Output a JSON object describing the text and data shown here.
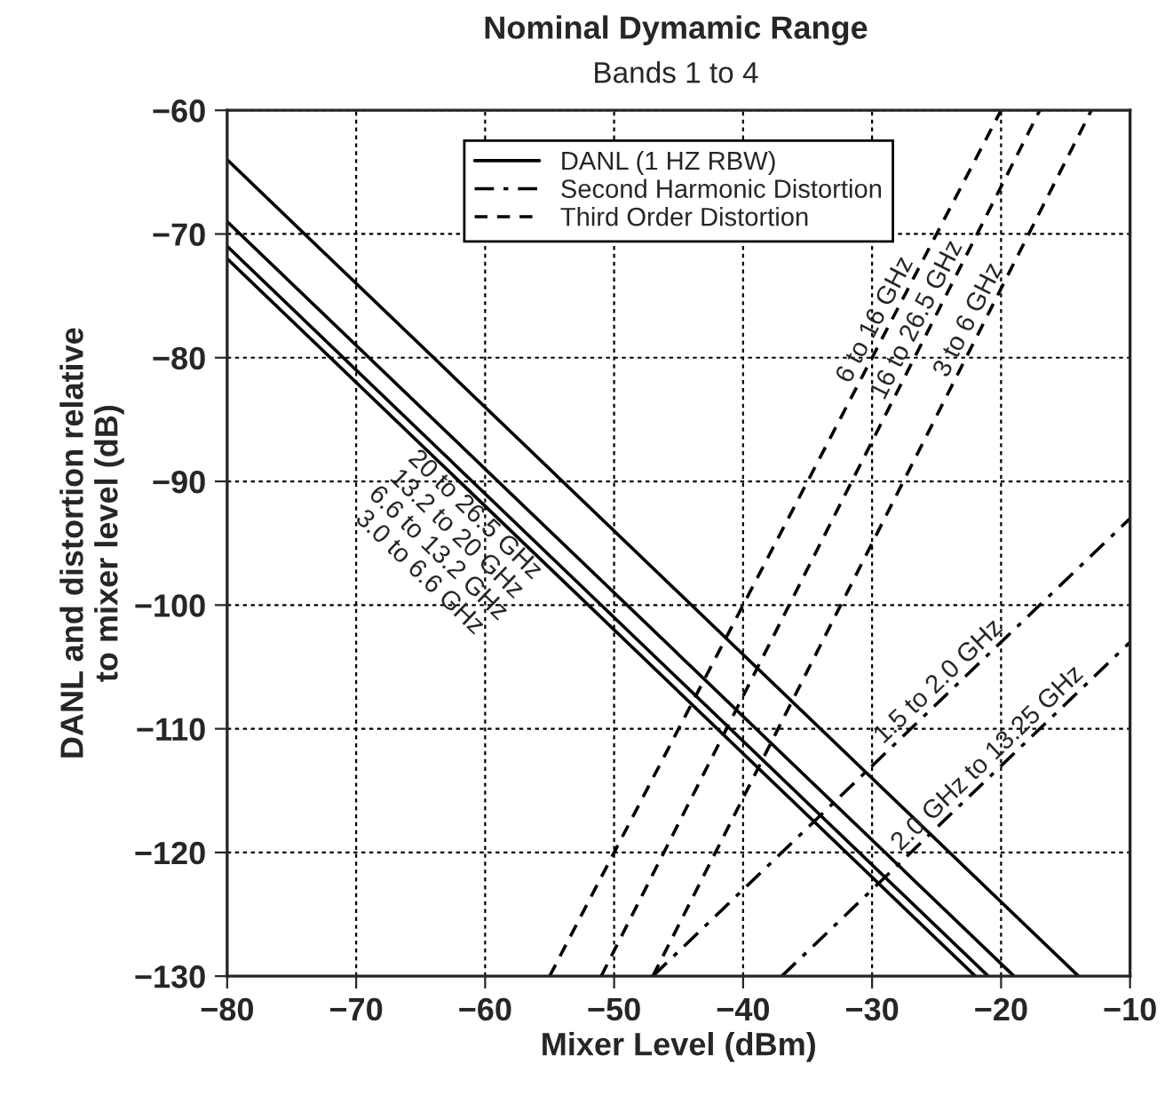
{
  "chart_data": {
    "type": "line",
    "title": "Nominal Dymamic Range",
    "subtitle": "Bands 1 to 4",
    "xlabel": "Mixer Level (dBm)",
    "ylabel": "DANL and distortion relative\nto mixer level (dB)",
    "series": [
      {
        "name": "DANL (1 HZ RBW)",
        "color": "#000000",
        "line_style": "solid",
        "x": [
          -80,
          -14
        ],
        "values": [
          -64,
          -130
        ]
      },
      {
        "color": "#000000",
        "line_style": "solid",
        "x": [
          -80,
          -19
        ],
        "values": [
          -69,
          -130
        ]
      },
      {
        "color": "#000000",
        "line_style": "solid",
        "x": [
          -80,
          -21
        ],
        "values": [
          -71,
          -130
        ]
      },
      {
        "color": "#000000",
        "line_style": "solid",
        "x": [
          -80,
          -22
        ],
        "values": [
          -72,
          -130
        ]
      },
      {
        "name": "Second Harmonic Distortion",
        "color": "#000000",
        "line_style": "dashdot",
        "x": [
          -47,
          -10
        ],
        "values": [
          -130,
          -93
        ]
      },
      {
        "color": "#000000",
        "line_style": "dashdot",
        "x": [
          -37,
          -10
        ],
        "values": [
          -130,
          -103
        ]
      },
      {
        "name": "Third Order Distortion",
        "color": "#000000",
        "line_style": "dashed",
        "x": [
          -55,
          -20
        ],
        "values": [
          -130,
          -60
        ]
      },
      {
        "color": "#000000",
        "line_style": "dashed",
        "x": [
          -51,
          -17
        ],
        "values": [
          -130,
          -60
        ]
      },
      {
        "color": "#000000",
        "line_style": "dashed",
        "x": [
          -47,
          -13
        ],
        "values": [
          -130,
          -60
        ]
      }
    ],
    "annotations": [
      "20 to 26.5 GHz",
      "13.2 to 20 GHz",
      "6.6 to 13.2 GHz",
      "3.0 to 6.6 GHz",
      "1.5 to 2.0 GHz",
      "2.0 GHz to 13.25 GHz",
      "6 to 16 GHz",
      "16 to 26.5 GHz",
      "3 to 6 GHz"
    ],
    "xlim": [
      -80,
      -10
    ],
    "ylim": [
      -130,
      -60
    ],
    "xticks": [
      {
        "value": -80,
        "label": "−80"
      },
      {
        "value": -70,
        "label": "−70"
      },
      {
        "value": -60,
        "label": "−60"
      },
      {
        "value": -50,
        "label": "−50"
      },
      {
        "value": -40,
        "label": "−40"
      },
      {
        "value": -30,
        "label": "−30"
      },
      {
        "value": -20,
        "label": "−20"
      },
      {
        "value": -10,
        "label": "−10"
      }
    ],
    "yticks": [
      {
        "value": -130,
        "label": "−130"
      },
      {
        "value": -120,
        "label": "−120"
      },
      {
        "value": -110,
        "label": "−110"
      },
      {
        "value": -100,
        "label": "−100"
      },
      {
        "value": -90,
        "label": "−90"
      },
      {
        "value": -80,
        "label": "−80"
      },
      {
        "value": -70,
        "label": "−70"
      },
      {
        "value": -60,
        "label": "−60"
      }
    ],
    "grid": true,
    "legend": "top",
    "marker": "none"
  }
}
